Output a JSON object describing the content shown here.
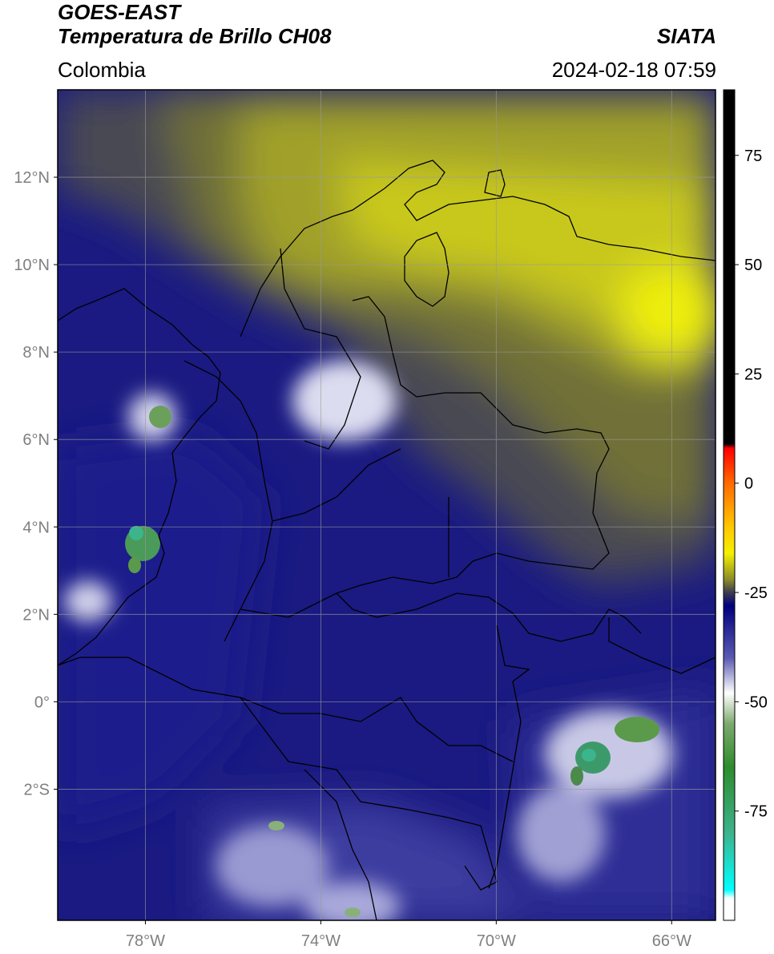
{
  "header": {
    "line1": "GOES-EAST",
    "line2": "Temperatura de Brillo CH08",
    "organization": "SIATA",
    "region": "Colombia",
    "timestamp": "2024-02-18 07:59"
  },
  "map": {
    "lon_range": [
      -80,
      -65
    ],
    "lat_range": [
      -5,
      14
    ],
    "lat_ticks": [
      {
        "value": 12,
        "label": "12°N"
      },
      {
        "value": 10,
        "label": "10°N"
      },
      {
        "value": 8,
        "label": "8°N"
      },
      {
        "value": 6,
        "label": "6°N"
      },
      {
        "value": 4,
        "label": "4°N"
      },
      {
        "value": 2,
        "label": "2°N"
      },
      {
        "value": 0,
        "label": "0°"
      },
      {
        "value": -2,
        "label": "2°S"
      }
    ],
    "lon_ticks": [
      {
        "value": -78,
        "label": "78°W"
      },
      {
        "value": -74,
        "label": "74°W"
      },
      {
        "value": -70,
        "label": "70°W"
      },
      {
        "value": -66,
        "label": "66°W"
      }
    ],
    "grid": true
  },
  "colorbar": {
    "range": [
      -100,
      90
    ],
    "ticks": [
      {
        "value": 75,
        "label": "75"
      },
      {
        "value": 50,
        "label": "50"
      },
      {
        "value": 25,
        "label": "25"
      },
      {
        "value": 0,
        "label": "0"
      },
      {
        "value": -25,
        "label": "-25"
      },
      {
        "value": -50,
        "label": "-50"
      },
      {
        "value": -75,
        "label": "-75"
      }
    ],
    "stops": [
      {
        "value": 90,
        "color": "#000000"
      },
      {
        "value": 9,
        "color": "#000000"
      },
      {
        "value": 8,
        "color": "#ff0000"
      },
      {
        "value": 0,
        "color": "#ff6a00"
      },
      {
        "value": -10,
        "color": "#ffc800"
      },
      {
        "value": -16,
        "color": "#f5f000"
      },
      {
        "value": -22,
        "color": "#8c8c2a"
      },
      {
        "value": -25,
        "color": "#3c3c50"
      },
      {
        "value": -28,
        "color": "#000080"
      },
      {
        "value": -40,
        "color": "#5a5ab4"
      },
      {
        "value": -48,
        "color": "#ffffff"
      },
      {
        "value": -55,
        "color": "#7daa6e"
      },
      {
        "value": -65,
        "color": "#2d8c2d"
      },
      {
        "value": -80,
        "color": "#3cb48c"
      },
      {
        "value": -93,
        "color": "#00ffff"
      },
      {
        "value": -95,
        "color": "#ffffff"
      },
      {
        "value": -100,
        "color": "#ffffff"
      }
    ]
  }
}
